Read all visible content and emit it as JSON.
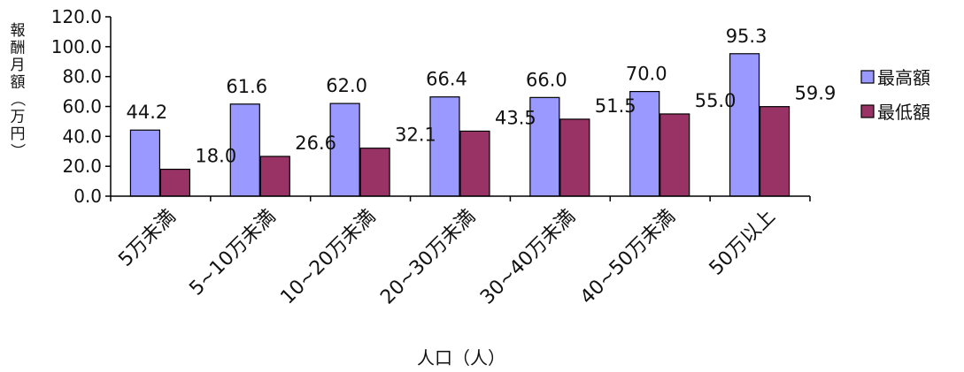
{
  "chart_data": {
    "type": "bar",
    "categories": [
      "5万未満",
      "5~10万未満",
      "10~20万未満",
      "20~30万未満",
      "30~40万未満",
      "40~50万未満",
      "50万以上"
    ],
    "series": [
      {
        "name": "最高額",
        "values": [
          44.2,
          61.6,
          62.0,
          66.4,
          66.0,
          70.0,
          95.3
        ],
        "labels": [
          "44.2",
          "61.6",
          "62.0",
          "66.4",
          "66.0",
          "70.0",
          "95.3"
        ],
        "color": "#9999ff"
      },
      {
        "name": "最低額",
        "values": [
          18.0,
          26.6,
          32.1,
          43.5,
          51.5,
          55.0,
          59.9
        ],
        "labels": [
          "18.0",
          "26.6",
          "32.1",
          "43.5",
          "51.5",
          "55.0",
          "59.9"
        ],
        "color": "#993366"
      }
    ],
    "ylabel": "報酬月額（万円）",
    "xlabel": "人口（人）",
    "ylim": [
      0,
      120
    ],
    "yticks": [
      "0.0",
      "20.0",
      "40.0",
      "60.0",
      "80.0",
      "100.0",
      "120.0"
    ],
    "grid": false,
    "legend_position": "right"
  }
}
